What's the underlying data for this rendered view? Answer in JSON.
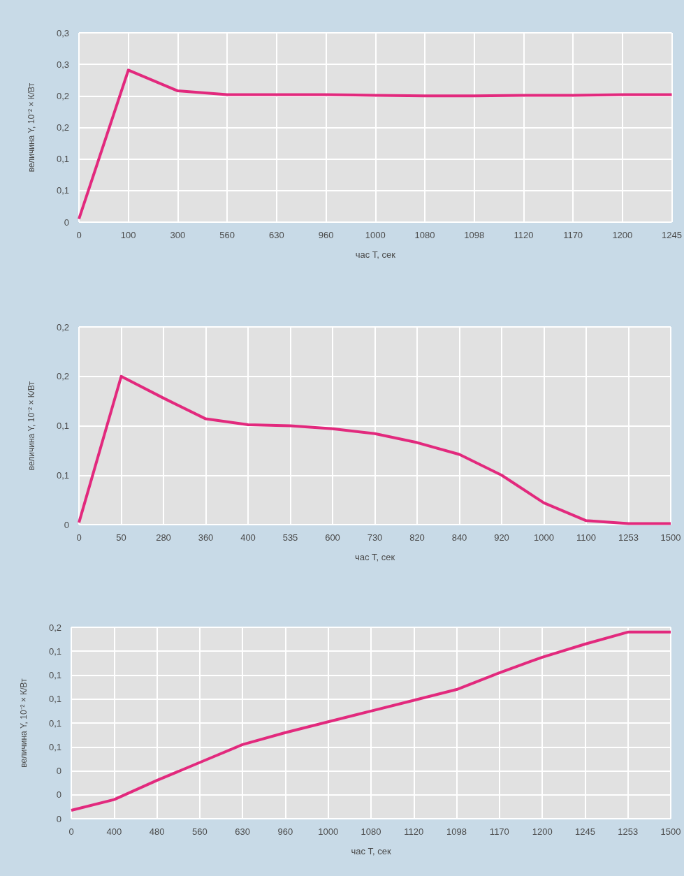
{
  "chart_data": [
    {
      "type": "line",
      "xlabel": "час T, сек",
      "ylabel": "величина Y, 10⁻² × К/Вт",
      "color": "#e2297d",
      "marker": "none",
      "grid": true,
      "categories": [
        "0",
        "100",
        "300",
        "560",
        "630",
        "960",
        "1000",
        "1080",
        "1098",
        "1120",
        "1170",
        "1200",
        "1245"
      ],
      "values": [
        0.005,
        0.241,
        0.208,
        0.202,
        0.202,
        0.202,
        0.201,
        0.2,
        0.2,
        0.201,
        0.201,
        0.202,
        0.202
      ],
      "ylim": [
        0,
        0.3
      ],
      "yticks": [
        {
          "value": 0,
          "label": "0"
        },
        {
          "value": 0.05,
          "label": "0,1"
        },
        {
          "value": 0.1,
          "label": "0,1"
        },
        {
          "value": 0.15,
          "label": "0,2"
        },
        {
          "value": 0.2,
          "label": "0,2"
        },
        {
          "value": 0.25,
          "label": "0,3"
        },
        {
          "value": 0.3,
          "label": "0,3"
        }
      ]
    },
    {
      "type": "line",
      "xlabel": "час T, сек",
      "ylabel": "величина Y, 10⁻² × К/Вт",
      "color": "#e2297d",
      "marker": "none",
      "grid": true,
      "categories": [
        "0",
        "50",
        "280",
        "360",
        "400",
        "535",
        "600",
        "730",
        "820",
        "840",
        "920",
        "1000",
        "1100",
        "1253",
        "1500"
      ],
      "values": [
        0.002,
        0.15,
        0.128,
        0.107,
        0.101,
        0.1,
        0.097,
        0.092,
        0.083,
        0.071,
        0.05,
        0.022,
        0.004,
        0.001,
        0.001
      ],
      "ylim": [
        0,
        0.2
      ],
      "yticks": [
        {
          "value": 0,
          "label": "0"
        },
        {
          "value": 0.05,
          "label": "0,1"
        },
        {
          "value": 0.1,
          "label": "0,1"
        },
        {
          "value": 0.15,
          "label": "0,2"
        },
        {
          "value": 0.2,
          "label": "0,2"
        }
      ]
    },
    {
      "type": "line",
      "xlabel": "час T, сек",
      "ylabel": "величина Y, 10⁻² × К/Вт",
      "color": "#e2297d",
      "marker": "none",
      "grid": true,
      "categories": [
        "0",
        "400",
        "480",
        "560",
        "630",
        "960",
        "1000",
        "1080",
        "1120",
        "1098",
        "1170",
        "1200",
        "1245",
        "1253",
        "1500"
      ],
      "values": [
        0.007,
        0.016,
        0.032,
        0.047,
        0.062,
        0.072,
        0.081,
        0.09,
        0.099,
        0.108,
        0.122,
        0.135,
        0.146,
        0.156,
        0.156
      ],
      "ylim": [
        0,
        0.16
      ],
      "yticks": [
        {
          "value": 0,
          "label": "0"
        },
        {
          "value": 0.02,
          "label": "0"
        },
        {
          "value": 0.04,
          "label": "0"
        },
        {
          "value": 0.06,
          "label": "0,1"
        },
        {
          "value": 0.08,
          "label": "0,1"
        },
        {
          "value": 0.1,
          "label": "0,1"
        },
        {
          "value": 0.12,
          "label": "0,1"
        },
        {
          "value": 0.14,
          "label": "0,1"
        },
        {
          "value": 0.16,
          "label": "0,2"
        }
      ]
    }
  ]
}
